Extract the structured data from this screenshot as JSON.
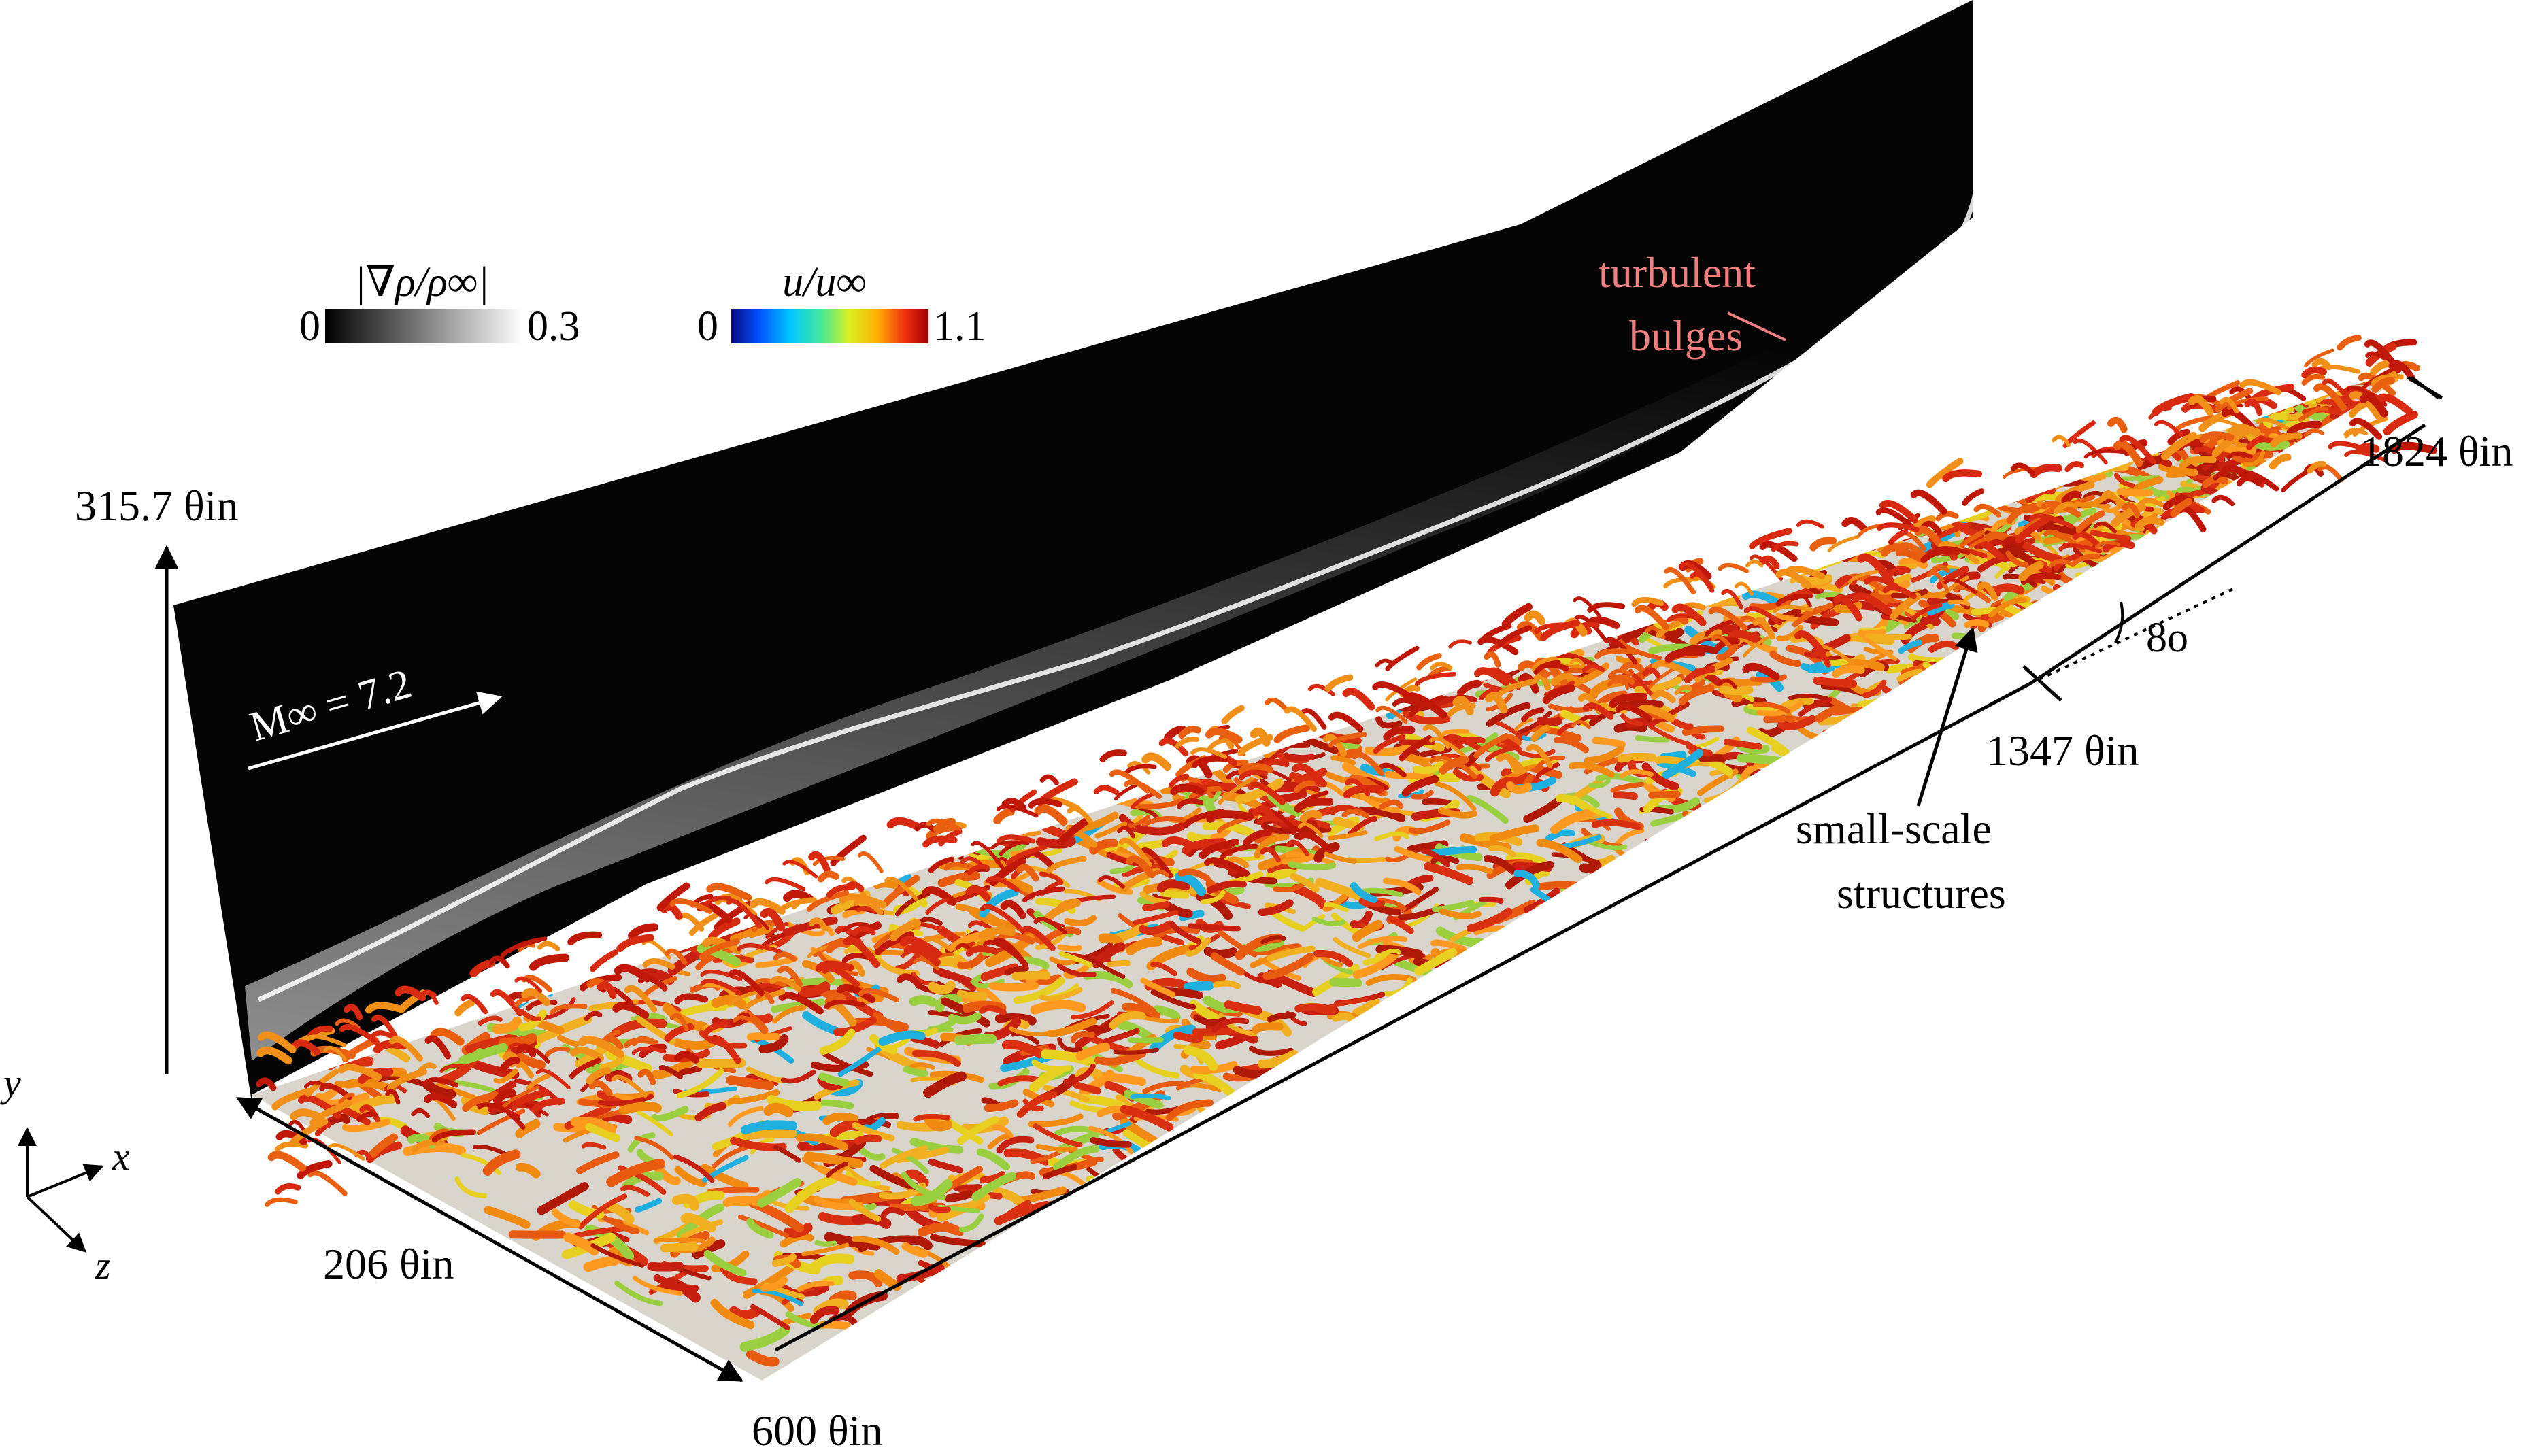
{
  "figure": {
    "colorbar_density": {
      "label": "|∇ρ/ρ∞|",
      "min": "0",
      "max": "0.3",
      "colors": [
        "#000000",
        "#ffffff"
      ]
    },
    "colorbar_velocity": {
      "label": "u/u∞",
      "min": "0",
      "max": "1.1",
      "colors": [
        "#0a0a80",
        "#0050ff",
        "#00c8ff",
        "#40e8a0",
        "#d8f020",
        "#ffb000",
        "#f03010",
        "#a00000"
      ]
    },
    "freestream_label": "M∞ = 7.2",
    "height_label": "315.7 θin",
    "width_label": "206 θin",
    "length_start_label": "600 θin",
    "length_ramp_label": "1347 θin",
    "length_end_label": "1824 θin",
    "ramp_angle_label": "8o",
    "annotation_bulges": {
      "line1": "turbulent",
      "line2": "bulges",
      "color": "#f08080"
    },
    "annotation_structures": {
      "line1": "small-scale",
      "line2": "structures"
    },
    "axes": {
      "x": "x",
      "y": "y",
      "z": "z"
    }
  }
}
